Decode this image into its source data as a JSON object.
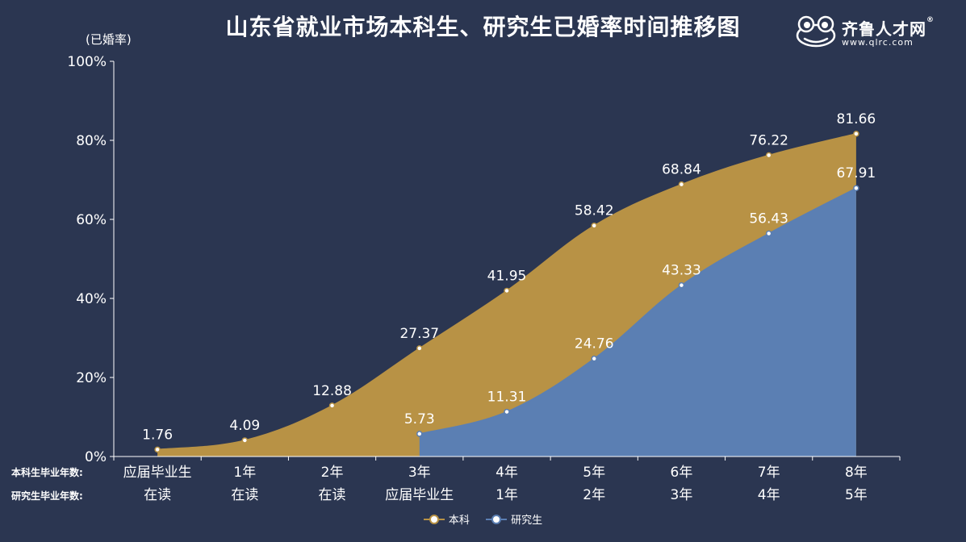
{
  "header": {
    "title": "山东省就业市场本科生、研究生已婚率时间推移图",
    "unit_label": "(已婚率)"
  },
  "logo": {
    "name": "齐鲁人才网",
    "registered": "®",
    "url": "www.qlrc.com",
    "icon": "frog-face-icon"
  },
  "row_labels": {
    "undergrad": "本科生毕业年数:",
    "grad": "研究生毕业年数:"
  },
  "colors": {
    "background": "#2b3651",
    "undergrad": "#b89245",
    "grad": "#5b7fb3",
    "axis": "#ffffff"
  },
  "chart_data": {
    "type": "area",
    "title": "山东省就业市场本科生、研究生已婚率时间推移图",
    "ylabel": "(已婚率)",
    "ylim": [
      0,
      100
    ],
    "yticks": [
      "0%",
      "20%",
      "40%",
      "60%",
      "80%",
      "100%"
    ],
    "ytick_values": [
      0,
      20,
      40,
      60,
      80,
      100
    ],
    "categories_undergrad": [
      "应届毕业生",
      "1年",
      "2年",
      "3年",
      "4年",
      "5年",
      "6年",
      "7年",
      "8年"
    ],
    "categories_grad": [
      "在读",
      "在读",
      "在读",
      "应届毕业生",
      "1年",
      "2年",
      "3年",
      "4年",
      "5年"
    ],
    "series": [
      {
        "name": "本科",
        "color": "#b89245",
        "start_index": 0,
        "values": [
          1.76,
          4.09,
          12.88,
          27.37,
          41.95,
          58.42,
          68.84,
          76.22,
          81.66
        ],
        "labels": [
          "1.76",
          "4.09",
          "12.88",
          "27.37",
          "41.95",
          "58.42",
          "68.84",
          "76.22",
          "81.66"
        ]
      },
      {
        "name": "研究生",
        "color": "#5b7fb3",
        "start_index": 3,
        "values": [
          5.73,
          11.31,
          24.76,
          43.33,
          56.43,
          67.91
        ],
        "labels": [
          "5.73",
          "11.31",
          "24.76",
          "43.33",
          "56.43",
          "67.91"
        ]
      }
    ],
    "legend_position": "bottom-center",
    "grid": false
  }
}
